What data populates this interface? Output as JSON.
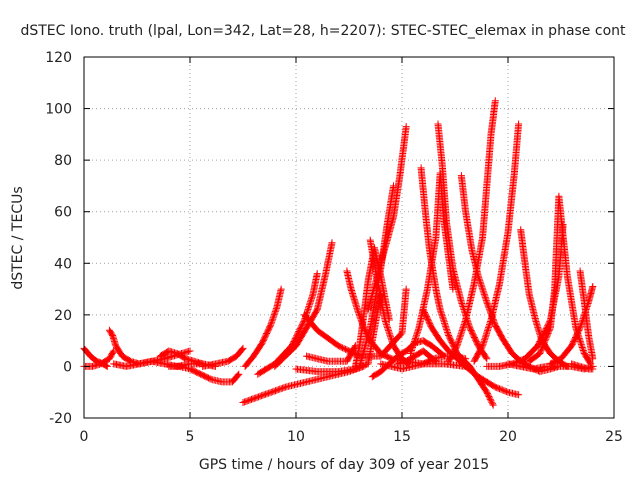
{
  "chart_data": {
    "type": "scatter",
    "title": "dSTEC Iono. truth (lpal, Lon=342, Lat=28, h=2207): STEC-STEC_elemax in phase cont",
    "xlabel": "GPS time / hours of day 309 of year 2015",
    "ylabel": "dSTEC  / TECUs",
    "xlim": [
      0,
      25
    ],
    "ylim": [
      -20,
      120
    ],
    "xticks": [
      0,
      5,
      10,
      15,
      20,
      25
    ],
    "yticks": [
      -20,
      0,
      20,
      40,
      60,
      80,
      100,
      120
    ],
    "xtick_labels": [
      "0",
      "5",
      "10",
      "15",
      "20",
      "25"
    ],
    "ytick_labels": [
      "-20",
      "0",
      "20",
      "40",
      "60",
      "80",
      "100",
      "120"
    ],
    "grid": true,
    "legend": "none",
    "marker": "plus",
    "color": "#ff0000",
    "series": [
      {
        "x": [
          0.0,
          0.3,
          0.6,
          0.9,
          1.1
        ],
        "y": [
          7,
          4,
          2,
          1,
          0
        ]
      },
      {
        "x": [
          0.0,
          0.4,
          0.8,
          1.2,
          1.4
        ],
        "y": [
          0,
          0,
          1,
          3,
          6
        ]
      },
      {
        "x": [
          1.2,
          1.35,
          1.5,
          1.8,
          2.2,
          2.6
        ],
        "y": [
          14,
          12,
          8,
          4,
          2,
          1
        ]
      },
      {
        "x": [
          1.4,
          2.0,
          2.6,
          3.2,
          3.8,
          4.2,
          4.6,
          5.0
        ],
        "y": [
          1,
          0,
          1,
          2,
          3,
          4,
          5,
          6
        ]
      },
      {
        "x": [
          2.6,
          3.2,
          3.8,
          4.4,
          5.0,
          5.6,
          6.2
        ],
        "y": [
          1,
          2,
          1,
          0,
          1,
          1,
          0
        ]
      },
      {
        "x": [
          3.6,
          4.0,
          4.4,
          4.8,
          5.2,
          5.6
        ],
        "y": [
          4,
          6,
          5,
          3,
          2,
          1
        ]
      },
      {
        "x": [
          4.0,
          4.5,
          5.0,
          5.5,
          6.0,
          6.5,
          7.0,
          7.3
        ],
        "y": [
          0,
          0,
          -1,
          -3,
          -5,
          -6,
          -6,
          -3
        ]
      },
      {
        "x": [
          5.6,
          6.2,
          6.8,
          7.2,
          7.5
        ],
        "y": [
          0,
          1,
          2,
          4,
          7
        ]
      },
      {
        "x": [
          7.6,
          8.0,
          8.4,
          8.8,
          9.1,
          9.3
        ],
        "y": [
          0,
          4,
          9,
          16,
          23,
          30
        ]
      },
      {
        "x": [
          7.5,
          8.5,
          9.5,
          10.5,
          11.5,
          12.5,
          13.2
        ],
        "y": [
          -14,
          -11,
          -8,
          -6,
          -4,
          -2,
          0
        ]
      },
      {
        "x": [
          8.2,
          9.0,
          9.8,
          10.4,
          10.8,
          11.0
        ],
        "y": [
          -3,
          1,
          8,
          18,
          28,
          36
        ]
      },
      {
        "x": [
          9.0,
          10.0,
          11.0,
          11.4,
          11.7
        ],
        "y": [
          0,
          8,
          22,
          36,
          48
        ]
      },
      {
        "x": [
          10.0,
          11.0,
          12.0,
          12.8,
          13.4,
          13.6,
          14.0
        ],
        "y": [
          -1,
          -2,
          -2,
          -1,
          1,
          10,
          28
        ]
      },
      {
        "x": [
          10.4,
          11.0,
          12.0,
          13.0,
          14.0,
          15.0,
          15.2
        ],
        "y": [
          20,
          14,
          8,
          4,
          4,
          13,
          30
        ]
      },
      {
        "x": [
          10.5,
          11.5,
          12.4,
          12.8
        ],
        "y": [
          4,
          2,
          2,
          8
        ]
      },
      {
        "x": [
          12.4,
          12.6,
          12.9,
          13.2,
          13.5,
          14.0,
          14.5,
          15.2,
          16.0,
          17.0,
          18.0
        ],
        "y": [
          37,
          30,
          22,
          15,
          10,
          5,
          3,
          2,
          1,
          1,
          0
        ]
      },
      {
        "x": [
          12.8,
          13.0,
          13.2,
          13.4,
          13.7,
          14.0,
          14.4
        ],
        "y": [
          0,
          8,
          20,
          33,
          46,
          35,
          18
        ]
      },
      {
        "x": [
          13.5,
          13.8,
          14.2,
          14.6,
          15.0,
          15.3
        ],
        "y": [
          49,
          35,
          18,
          8,
          3,
          1
        ]
      },
      {
        "x": [
          13.4,
          13.8,
          14.2,
          14.6,
          14.9,
          15.2
        ],
        "y": [
          22,
          34,
          46,
          58,
          74,
          93
        ]
      },
      {
        "x": [
          13.0,
          13.5,
          14.0,
          14.3,
          14.6
        ],
        "y": [
          0,
          15,
          38,
          55,
          70
        ]
      },
      {
        "x": [
          13.6,
          14.0,
          14.4,
          14.8,
          15.2,
          15.6,
          16.0,
          16.4,
          17.0
        ],
        "y": [
          -4,
          -2,
          1,
          4,
          6,
          9,
          10,
          8,
          4
        ]
      },
      {
        "x": [
          14.0,
          14.5,
          15.0,
          15.5,
          16.0,
          16.5,
          17.0,
          17.5,
          18.0
        ],
        "y": [
          1,
          0,
          -1,
          0,
          1,
          3,
          4,
          4,
          3
        ]
      },
      {
        "x": [
          14.8,
          15.2,
          15.6,
          16.0,
          16.3,
          16.6
        ],
        "y": [
          1,
          2,
          4,
          6,
          4,
          2
        ]
      },
      {
        "x": [
          15.4,
          15.8,
          16.2,
          16.6,
          16.8,
          17.0,
          17.4
        ],
        "y": [
          5,
          15,
          30,
          50,
          75,
          55,
          30
        ]
      },
      {
        "x": [
          15.9,
          16.1,
          16.3,
          16.6,
          16.8,
          17.2,
          17.6,
          18.2,
          19.0,
          19.3
        ],
        "y": [
          77,
          60,
          45,
          30,
          22,
          12,
          5,
          0,
          -10,
          -15
        ]
      },
      {
        "x": [
          16.7,
          16.9,
          17.1,
          17.4,
          17.8,
          18.2,
          18.6,
          19.0
        ],
        "y": [
          94,
          78,
          56,
          38,
          25,
          15,
          8,
          3
        ]
      },
      {
        "x": [
          16.0,
          16.4,
          16.8,
          17.2,
          17.6,
          18.0,
          18.6,
          19.4,
          20.0,
          20.5
        ],
        "y": [
          22,
          15,
          10,
          6,
          3,
          0,
          -4,
          -8,
          -10,
          -11
        ]
      },
      {
        "x": [
          17.2,
          17.6,
          18.0,
          18.4,
          18.8,
          19.0,
          19.2,
          19.4
        ],
        "y": [
          2,
          8,
          18,
          32,
          50,
          70,
          90,
          103
        ]
      },
      {
        "x": [
          17.8,
          18.0,
          18.3,
          18.6,
          19.0,
          19.4,
          19.8,
          20.2,
          20.6,
          21.0,
          21.5,
          22.0,
          22.4
        ],
        "y": [
          74,
          60,
          45,
          35,
          25,
          16,
          10,
          5,
          2,
          0,
          -2,
          -1,
          0
        ]
      },
      {
        "x": [
          18.4,
          18.8,
          19.2,
          19.6,
          20.0,
          20.3,
          20.5
        ],
        "y": [
          2,
          8,
          18,
          32,
          52,
          75,
          94
        ]
      },
      {
        "x": [
          19.0,
          19.6,
          20.2,
          20.8,
          21.4,
          22.0,
          22.4,
          22.6
        ],
        "y": [
          0,
          0,
          1,
          3,
          8,
          18,
          35,
          55
        ]
      },
      {
        "x": [
          20.6,
          20.8,
          21.0,
          21.3,
          21.6,
          22.0,
          22.4,
          22.8
        ],
        "y": [
          53,
          40,
          28,
          18,
          10,
          5,
          2,
          0
        ]
      },
      {
        "x": [
          20.0,
          20.6,
          21.2,
          21.8,
          22.4,
          23.0,
          23.6,
          24.0
        ],
        "y": [
          1,
          0,
          -1,
          0,
          0,
          0,
          -1,
          0
        ]
      },
      {
        "x": [
          21.0,
          21.5,
          22.0,
          22.2,
          22.4,
          22.8,
          23.2,
          23.6,
          23.9
        ],
        "y": [
          2,
          5,
          15,
          30,
          66,
          35,
          15,
          5,
          1
        ]
      },
      {
        "x": [
          22.0,
          22.5,
          23.0,
          23.4,
          23.8,
          24.0
        ],
        "y": [
          1,
          3,
          8,
          15,
          25,
          31
        ]
      },
      {
        "x": [
          23.4,
          23.6,
          23.8,
          24.0
        ],
        "y": [
          37,
          25,
          12,
          3
        ]
      },
      {
        "x": [
          23.0,
          23.4,
          23.8,
          24.0
        ],
        "y": [
          1,
          0,
          -1,
          -1
        ]
      }
    ]
  }
}
